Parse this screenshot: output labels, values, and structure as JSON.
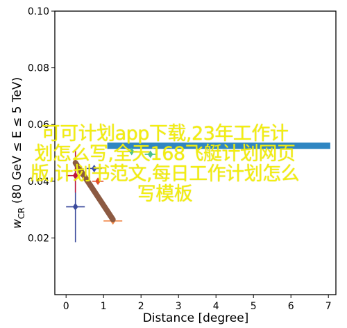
{
  "chart_data": {
    "type": "scatter",
    "xlabel": "Distance [degree]",
    "ylabel": "w_CR (80 GeV ≤ E ≤ 5 TeV)",
    "ylabel_main": "w",
    "ylabel_sub": "CR",
    "ylabel_rest": " (80 GeV ≤ E ≤ 5 TeV)",
    "xlim": [
      -0.3,
      7.2
    ],
    "ylim": [
      0.0,
      0.1
    ],
    "x_ticks": [
      0,
      1,
      2,
      3,
      4,
      5,
      6,
      7
    ],
    "y_ticks": [
      0.02,
      0.04,
      0.06,
      0.08,
      0.1
    ],
    "y_tick_labels": [
      "0.02",
      "0.04",
      "0.06",
      "0.08",
      "0.10"
    ],
    "grid": false,
    "series": [
      {
        "color": "#3b4a9c",
        "marker": "diamond",
        "points": [
          {
            "x": 0.25,
            "y": 0.031,
            "xerr": 0.25,
            "ylo": 0.0185,
            "yhi": 0.047
          }
        ]
      },
      {
        "color": "#c0143c",
        "marker": "diamond",
        "points": [
          {
            "x": 0.25,
            "y": 0.042,
            "xerr": 0.25,
            "ylo": 0.036,
            "yhi": 0.051
          }
        ]
      },
      {
        "color": "#e2502a",
        "marker": "diamond",
        "points": [
          {
            "x": 0.85,
            "y": 0.04,
            "xerr": 0.15
          }
        ]
      },
      {
        "color": "#f08a4b",
        "marker": "diamond",
        "points": [
          {
            "x": 1.25,
            "y": 0.026,
            "xerr": 0.25
          }
        ]
      },
      {
        "color": "#3949ab",
        "marker": "diamond",
        "points": [
          {
            "x": 0.75,
            "y": 0.0445,
            "xerr": 0.2
          }
        ]
      },
      {
        "color": "#4cc08c",
        "marker": "diamond",
        "points": [
          {
            "x": 1.75,
            "y": 0.0505,
            "xerr": 0.15
          }
        ]
      },
      {
        "color": "#4cc08c",
        "marker": "diamond",
        "points": [
          {
            "x": 2.25,
            "y": 0.0495,
            "xerr": 0.15
          }
        ]
      }
    ],
    "reference_band": {
      "x": [
        1.1,
        7.05
      ],
      "y": 0.0525,
      "color": "#2f86c2"
    },
    "trend_line": {
      "x": [
        0.25,
        1.25
      ],
      "y": [
        0.0465,
        0.0265
      ],
      "color": "#8c5a42"
    }
  },
  "overlay": {
    "lines": [
      "可可计划app下载,23年工作计",
      "划怎么写,全天168飞艇计划网页",
      "版,计划书范文,每日工作计划怎么",
      "写模板"
    ],
    "color": "#f3ee10"
  }
}
